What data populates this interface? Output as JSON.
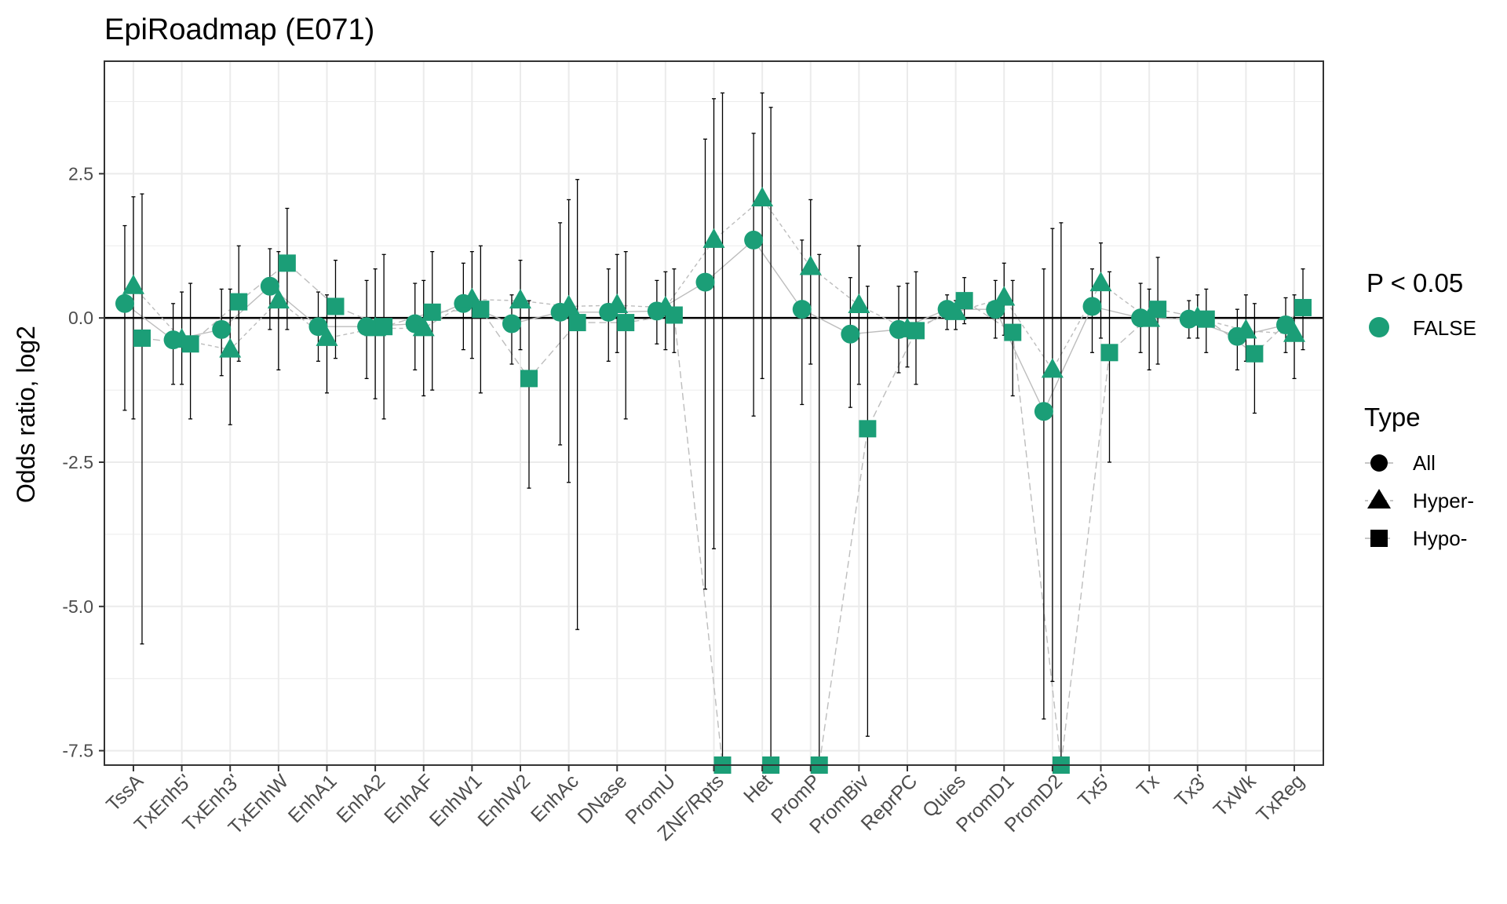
{
  "chart_data": {
    "type": "scatter",
    "title": "EpiRoadmap (E071)",
    "xlabel": "",
    "ylabel": "Odds ratio, log2",
    "ylim": [
      -7.75,
      4.45
    ],
    "yticks": [
      2.5,
      0.0,
      -2.5,
      -5.0,
      -7.5
    ],
    "ytick_labels": [
      "2.5",
      "0.0",
      "-2.5",
      "-5.0",
      "-7.5"
    ],
    "reference_line_y": 0,
    "grid": true,
    "marker_color": "#1b9e77",
    "categories": [
      "TssA",
      "TxEnh5'",
      "TxEnh3'",
      "TxEnhW",
      "EnhA1",
      "EnhA2",
      "EnhAF",
      "EnhW1",
      "EnhW2",
      "EnhAc",
      "DNase",
      "PromU",
      "ZNF/Rpts",
      "Het",
      "PromP",
      "PromBiv",
      "ReprPC",
      "Quies",
      "PromD1",
      "PromD2",
      "Tx5'",
      "Tx",
      "Tx3'",
      "TxWk",
      "TxReg"
    ],
    "series": [
      {
        "name": "All",
        "marker": "circle",
        "values": [
          0.25,
          -0.38,
          -0.2,
          0.55,
          -0.15,
          -0.15,
          -0.1,
          0.25,
          -0.1,
          0.1,
          0.1,
          0.12,
          0.62,
          1.35,
          0.15,
          -0.28,
          -0.2,
          0.15,
          0.15,
          -1.62,
          0.2,
          0.0,
          -0.02,
          -0.32,
          -0.12
        ],
        "lower": [
          -1.6,
          -1.15,
          -1.0,
          -0.2,
          -0.75,
          -1.05,
          -0.9,
          -0.55,
          -0.8,
          -2.2,
          -0.75,
          -0.45,
          -4.7,
          -1.7,
          -1.5,
          -1.55,
          -0.95,
          -0.2,
          -0.35,
          -6.95,
          -0.6,
          -0.6,
          -0.35,
          -0.9,
          -0.6
        ],
        "upper": [
          1.6,
          0.25,
          0.5,
          1.2,
          0.45,
          0.65,
          0.6,
          0.95,
          0.4,
          1.65,
          0.85,
          0.65,
          3.1,
          3.2,
          1.35,
          0.7,
          0.55,
          0.4,
          0.65,
          0.85,
          0.85,
          0.6,
          0.3,
          0.15,
          0.35
        ]
      },
      {
        "name": "Hyper-",
        "marker": "triangle",
        "values": [
          0.55,
          -0.38,
          -0.55,
          0.3,
          -0.35,
          -0.18,
          -0.18,
          0.32,
          0.3,
          0.2,
          0.22,
          0.18,
          1.35,
          2.07,
          0.88,
          0.22,
          -0.2,
          0.1,
          0.35,
          -0.9,
          0.6,
          -0.02,
          0.0,
          -0.22,
          -0.28
        ],
        "lower": [
          -1.75,
          -1.15,
          -1.85,
          -0.9,
          -1.3,
          -1.4,
          -1.35,
          -0.7,
          -0.55,
          -2.85,
          -0.6,
          -0.55,
          -4.0,
          -1.05,
          -0.8,
          -1.15,
          -0.85,
          -0.2,
          -0.3,
          -6.3,
          -0.35,
          -0.9,
          -0.35,
          -0.75,
          -1.05
        ],
        "upper": [
          2.1,
          0.45,
          0.5,
          1.15,
          0.4,
          0.85,
          0.65,
          1.15,
          1.0,
          2.05,
          1.1,
          0.8,
          3.8,
          3.9,
          2.05,
          1.25,
          0.6,
          0.3,
          0.95,
          1.55,
          1.3,
          0.5,
          0.4,
          0.4,
          0.4
        ]
      },
      {
        "name": "Hypo-",
        "marker": "square",
        "values": [
          -0.35,
          -0.45,
          0.28,
          0.95,
          0.2,
          -0.15,
          0.1,
          0.15,
          -1.05,
          -0.08,
          -0.08,
          0.05,
          -7.75,
          -7.75,
          -7.75,
          -1.92,
          -0.22,
          0.3,
          -0.25,
          -7.75,
          -0.6,
          0.15,
          -0.02,
          -0.62,
          0.18
        ],
        "lower": [
          -5.65,
          -1.75,
          -0.75,
          -0.2,
          -0.7,
          -1.75,
          -1.25,
          -1.3,
          -2.95,
          -5.4,
          -1.75,
          -0.6,
          -7.75,
          -7.75,
          -7.75,
          -7.25,
          -1.15,
          -0.1,
          -1.35,
          -7.75,
          -2.5,
          -0.8,
          -0.6,
          -1.65,
          -0.55
        ],
        "upper": [
          2.15,
          0.6,
          1.25,
          1.9,
          1.0,
          1.1,
          1.15,
          1.25,
          0.3,
          2.4,
          1.15,
          0.85,
          3.9,
          3.65,
          1.1,
          0.55,
          0.8,
          0.7,
          0.65,
          1.65,
          0.8,
          1.05,
          0.5,
          0.25,
          0.85
        ]
      }
    ],
    "legend": {
      "placement": "right",
      "significance_title": "P < 0.05",
      "significance_entries": [
        {
          "label": "FALSE",
          "color": "#1b9e77"
        }
      ],
      "type_title": "Type",
      "type_entries": [
        {
          "label": "All",
          "marker": "circle"
        },
        {
          "label": "Hyper-",
          "marker": "triangle"
        },
        {
          "label": "Hypo-",
          "marker": "square"
        }
      ]
    }
  }
}
